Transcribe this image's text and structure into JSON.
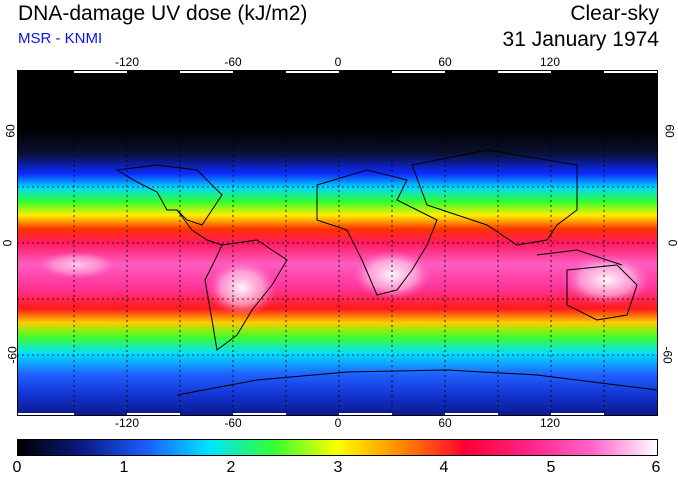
{
  "header": {
    "title": "DNA-damage UV dose (kJ/m2)",
    "subtitle": "MSR - KNMI",
    "condition": "Clear-sky",
    "date": "31 January 1974"
  },
  "axes": {
    "lon_labels": [
      "-120",
      "-60",
      "0",
      "60",
      "120"
    ],
    "lat_labels": [
      "60",
      "0",
      "-60"
    ]
  },
  "colorbar": {
    "labels": [
      "0",
      "1",
      "2",
      "3",
      "4",
      "5",
      "6"
    ],
    "colors": [
      "#000000",
      "#0a1a80",
      "#1a5cff",
      "#00e5ff",
      "#33ff33",
      "#ffff00",
      "#ff8800",
      "#ff0033",
      "#ff2288",
      "#ff66cc",
      "#ffffff"
    ]
  }
}
